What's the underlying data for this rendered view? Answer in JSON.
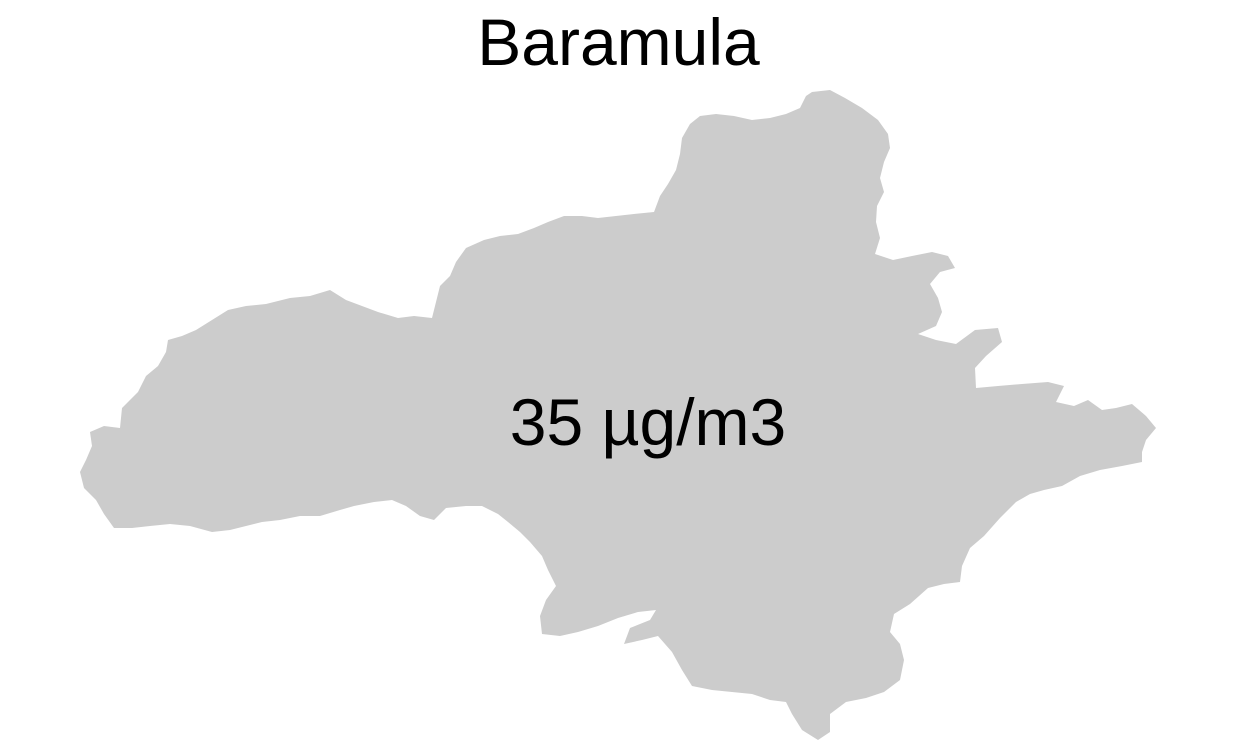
{
  "map": {
    "title": "Baramula",
    "region": {
      "name": "Baramula",
      "value_label": "35 µg/m3",
      "fill_color": "#cccccc"
    },
    "background_color": "#ffffff"
  }
}
